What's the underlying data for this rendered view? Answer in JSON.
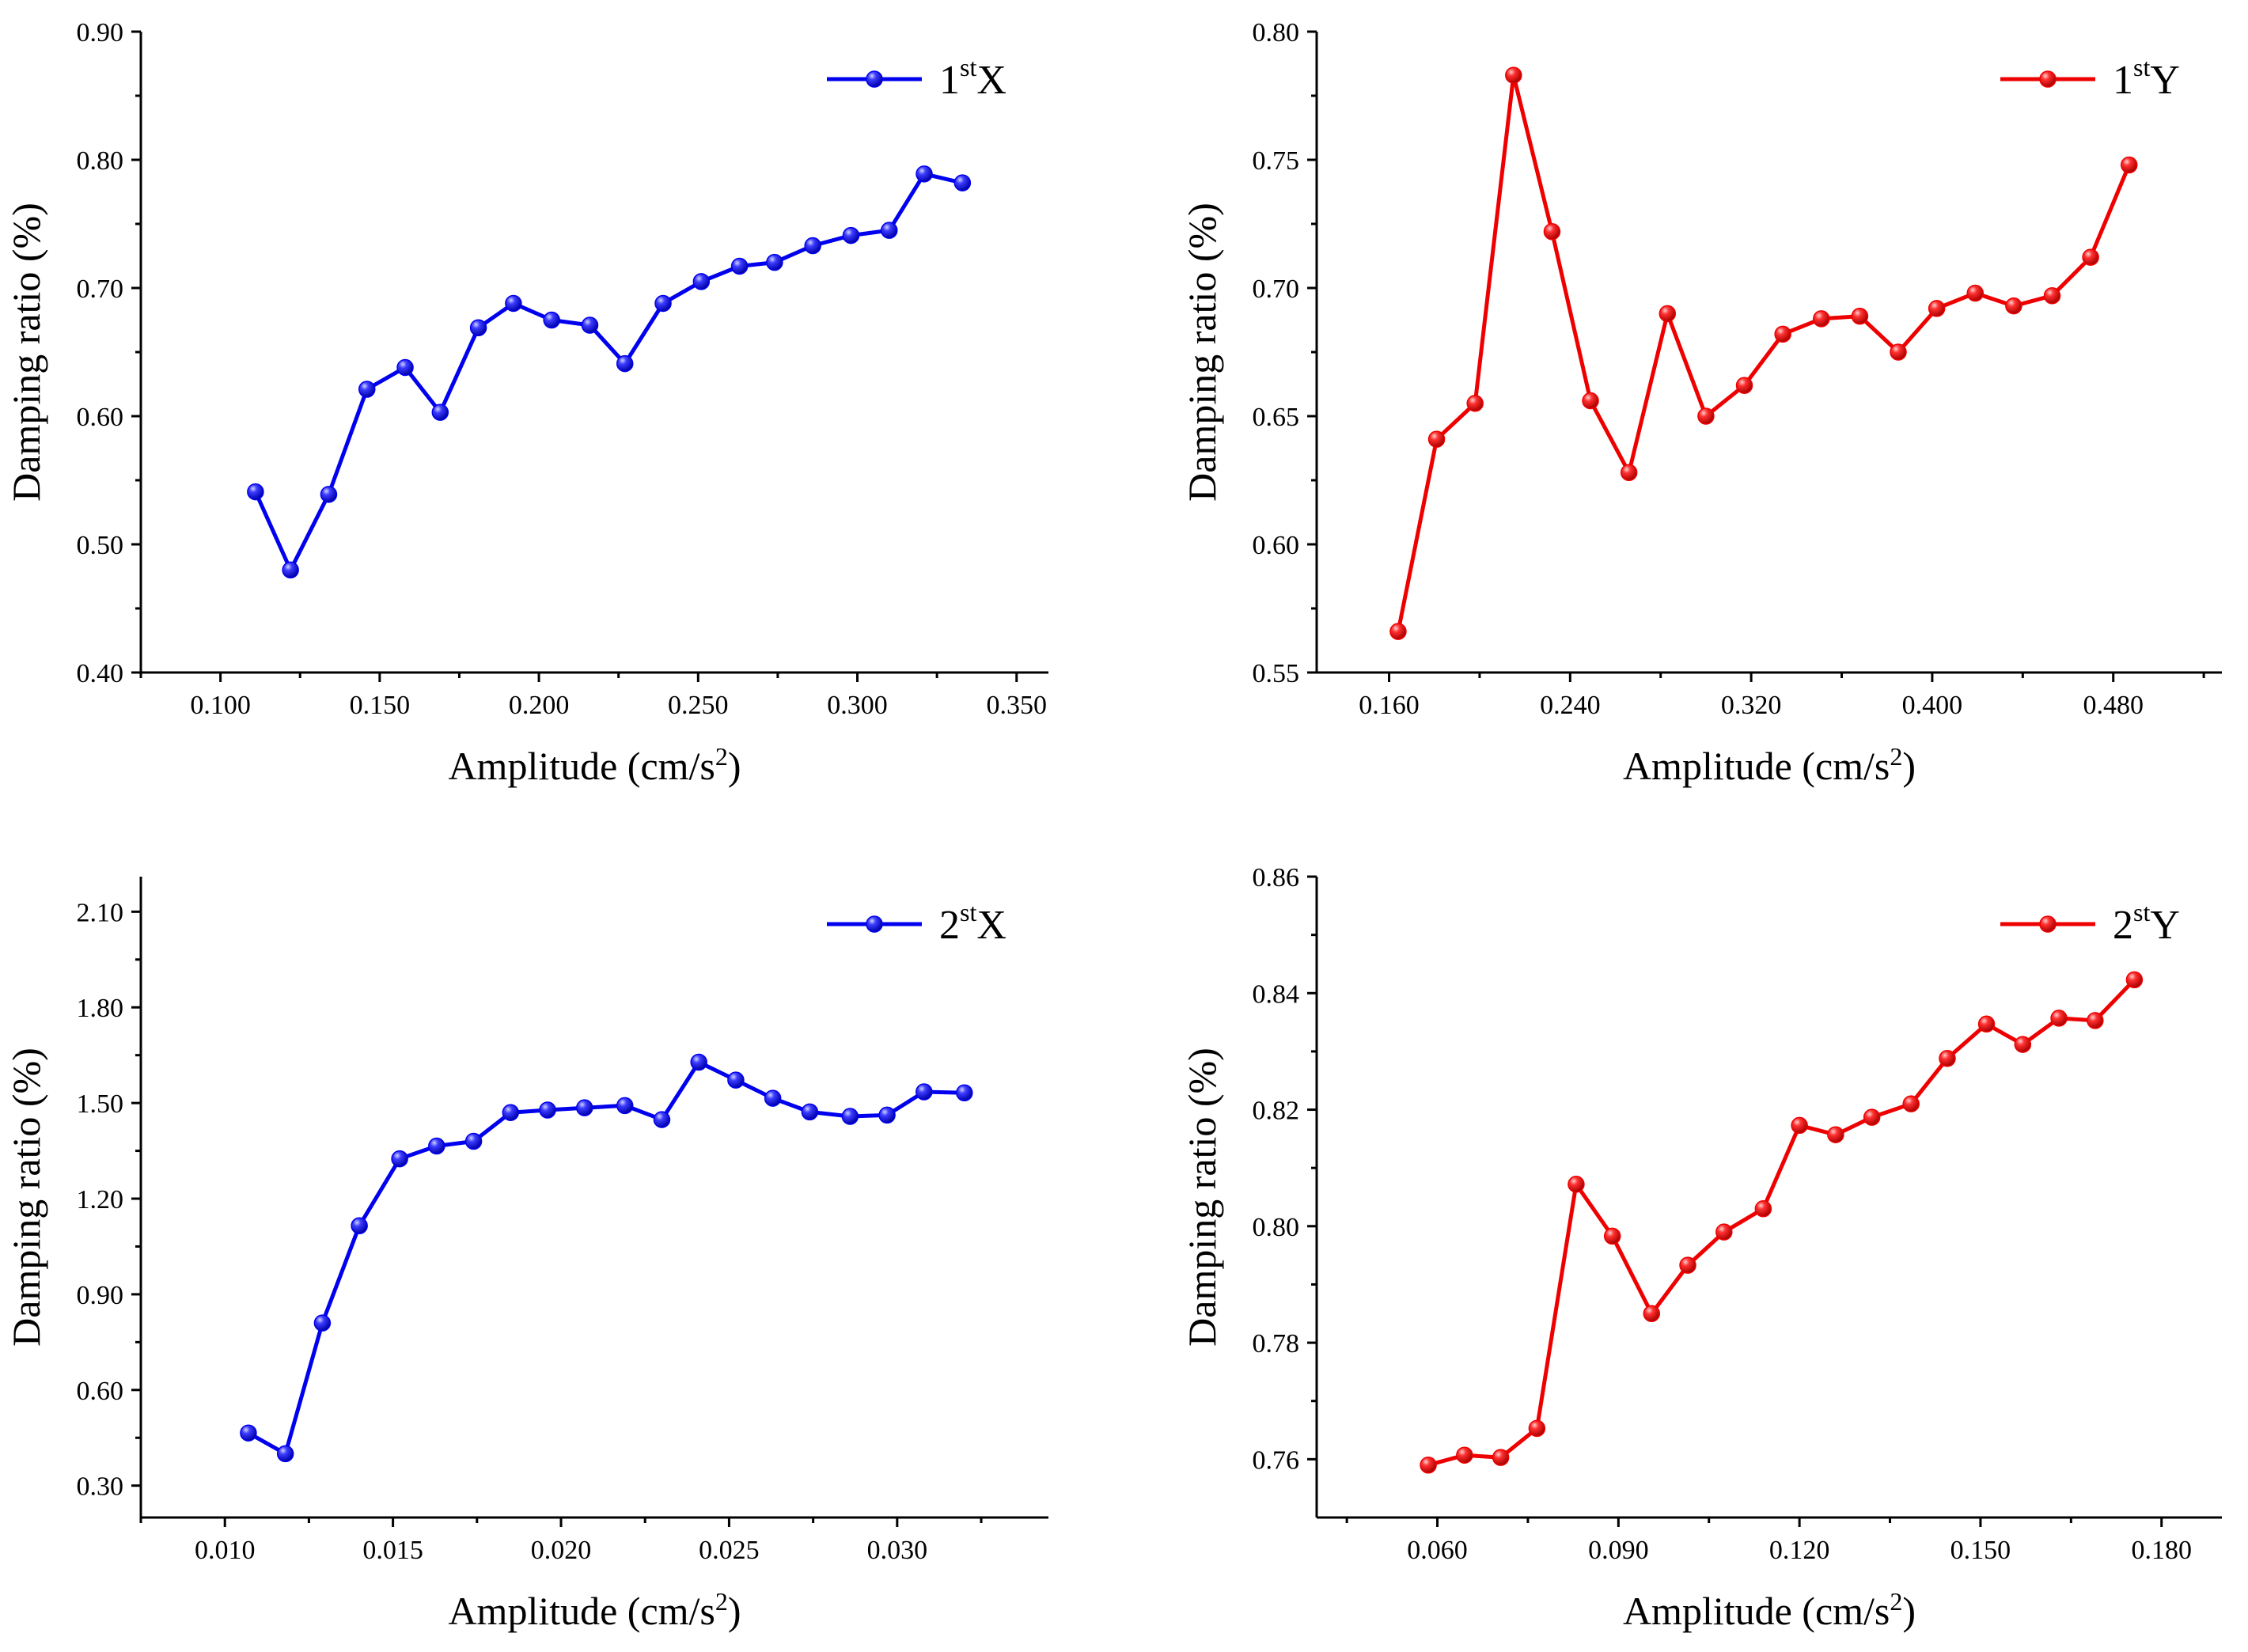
{
  "chart_data": [
    {
      "type": "line",
      "id": "p1",
      "color": "#0000EE",
      "legend": {
        "main_pre": "1",
        "sup": "st",
        "main_post": "X",
        "position": "top-right"
      },
      "xlabel": "Amplitude (cm/s",
      "xlabel_sup": "2",
      "xlabel_close": ")",
      "ylabel": "Damping ratio (%)",
      "xlim": [
        0.075,
        0.36
      ],
      "ylim": [
        0.4,
        0.9
      ],
      "xticks": [
        0.1,
        0.15,
        0.2,
        0.25,
        0.3,
        0.35
      ],
      "xtick_labels": [
        "0.100",
        "0.150",
        "0.200",
        "0.250",
        "0.300",
        "0.350"
      ],
      "yticks": [
        0.4,
        0.5,
        0.6,
        0.7,
        0.8,
        0.9
      ],
      "ytick_labels": [
        "0.40",
        "0.50",
        "0.60",
        "0.70",
        "0.80",
        "0.90"
      ],
      "x": [
        0.111,
        0.122,
        0.134,
        0.146,
        0.158,
        0.169,
        0.181,
        0.192,
        0.204,
        0.216,
        0.227,
        0.239,
        0.251,
        0.263,
        0.274,
        0.286,
        0.298,
        0.31,
        0.321,
        0.333
      ],
      "y": [
        0.541,
        0.48,
        0.539,
        0.621,
        0.638,
        0.603,
        0.669,
        0.688,
        0.675,
        0.671,
        0.641,
        0.688,
        0.705,
        0.717,
        0.72,
        0.733,
        0.741,
        0.745,
        0.789,
        0.782
      ]
    },
    {
      "type": "line",
      "id": "p2",
      "color": "#EE0000",
      "legend": {
        "main_pre": "1",
        "sup": "st",
        "main_post": "Y",
        "position": "top-right"
      },
      "xlabel": "Amplitude (cm/s",
      "xlabel_sup": "2",
      "xlabel_close": ")",
      "ylabel": "Damping ratio (%)",
      "xlim": [
        0.128,
        0.528
      ],
      "ylim": [
        0.55,
        0.8
      ],
      "xticks": [
        0.16,
        0.24,
        0.32,
        0.4,
        0.48
      ],
      "xtick_labels": [
        "0.160",
        "0.240",
        "0.320",
        "0.400",
        "0.480"
      ],
      "yticks": [
        0.55,
        0.6,
        0.65,
        0.7,
        0.75,
        0.8
      ],
      "ytick_labels": [
        "0.55",
        "0.60",
        "0.65",
        "0.70",
        "0.75",
        "0.80"
      ],
      "x": [
        0.164,
        0.181,
        0.198,
        0.215,
        0.232,
        0.249,
        0.266,
        0.283,
        0.3,
        0.317,
        0.334,
        0.351,
        0.368,
        0.385,
        0.402,
        0.419,
        0.436,
        0.453,
        0.47,
        0.487
      ],
      "y": [
        0.566,
        0.641,
        0.655,
        0.783,
        0.722,
        0.656,
        0.628,
        0.69,
        0.65,
        0.662,
        0.682,
        0.688,
        0.689,
        0.675,
        0.692,
        0.698,
        0.693,
        0.697,
        0.712,
        0.748
      ]
    },
    {
      "type": "line",
      "id": "p3",
      "color": "#0000EE",
      "legend": {
        "main_pre": "2",
        "sup": "st",
        "main_post": "X",
        "position": "top-right"
      },
      "xlabel": "Amplitude (cm/s",
      "xlabel_sup": "2",
      "xlabel_close": ")",
      "ylabel": "Damping ratio (%)",
      "xlim": [
        0.0075,
        0.0345
      ],
      "ylim": [
        0.2,
        2.21
      ],
      "xticks": [
        0.01,
        0.015,
        0.02,
        0.025,
        0.03
      ],
      "xtick_labels": [
        "0.010",
        "0.015",
        "0.020",
        "0.025",
        "0.030"
      ],
      "yticks": [
        0.3,
        0.6,
        0.9,
        1.2,
        1.5,
        1.8,
        2.1
      ],
      "ytick_labels": [
        "0.30",
        "0.60",
        "0.90",
        "1.20",
        "1.50",
        "1.80",
        "2.10"
      ],
      "x": [
        0.0107,
        0.0118,
        0.0129,
        0.014,
        0.0152,
        0.0163,
        0.0174,
        0.0185,
        0.0196,
        0.0207,
        0.0219,
        0.023,
        0.0241,
        0.0252,
        0.0263,
        0.0274,
        0.0286,
        0.0297,
        0.0308,
        0.032
      ],
      "y": [
        0.465,
        0.4,
        0.81,
        1.115,
        1.325,
        1.365,
        1.38,
        1.47,
        1.478,
        1.485,
        1.492,
        1.448,
        1.628,
        1.572,
        1.515,
        1.472,
        1.458,
        1.462,
        1.535,
        1.532
      ]
    },
    {
      "type": "line",
      "id": "p4",
      "color": "#EE0000",
      "legend": {
        "main_pre": "2",
        "sup": "st",
        "main_post": "Y",
        "position": "top-right"
      },
      "xlabel": "Amplitude (cm/s",
      "xlabel_sup": "2",
      "xlabel_close": ")",
      "ylabel": "Damping ratio (%)",
      "xlim": [
        0.04,
        0.19
      ],
      "ylim": [
        0.75,
        0.86
      ],
      "xticks": [
        0.06,
        0.09,
        0.12,
        0.15,
        0.18
      ],
      "xtick_labels": [
        "0.060",
        "0.090",
        "0.120",
        "0.150",
        "0.180"
      ],
      "yticks": [
        0.76,
        0.78,
        0.8,
        0.82,
        0.84,
        0.86
      ],
      "ytick_labels": [
        "0.76",
        "0.78",
        "0.80",
        "0.82",
        "0.84",
        "0.86"
      ],
      "x": [
        0.0585,
        0.0645,
        0.0705,
        0.0765,
        0.083,
        0.089,
        0.0955,
        0.1015,
        0.1075,
        0.114,
        0.12,
        0.126,
        0.132,
        0.1385,
        0.1445,
        0.151,
        0.157,
        0.163,
        0.169,
        0.1755
      ],
      "y": [
        0.759,
        0.7607,
        0.7603,
        0.7653,
        0.8072,
        0.7983,
        0.785,
        0.7933,
        0.799,
        0.803,
        0.8173,
        0.8157,
        0.8187,
        0.821,
        0.8288,
        0.8347,
        0.8312,
        0.8357,
        0.8353,
        0.8423
      ]
    }
  ]
}
